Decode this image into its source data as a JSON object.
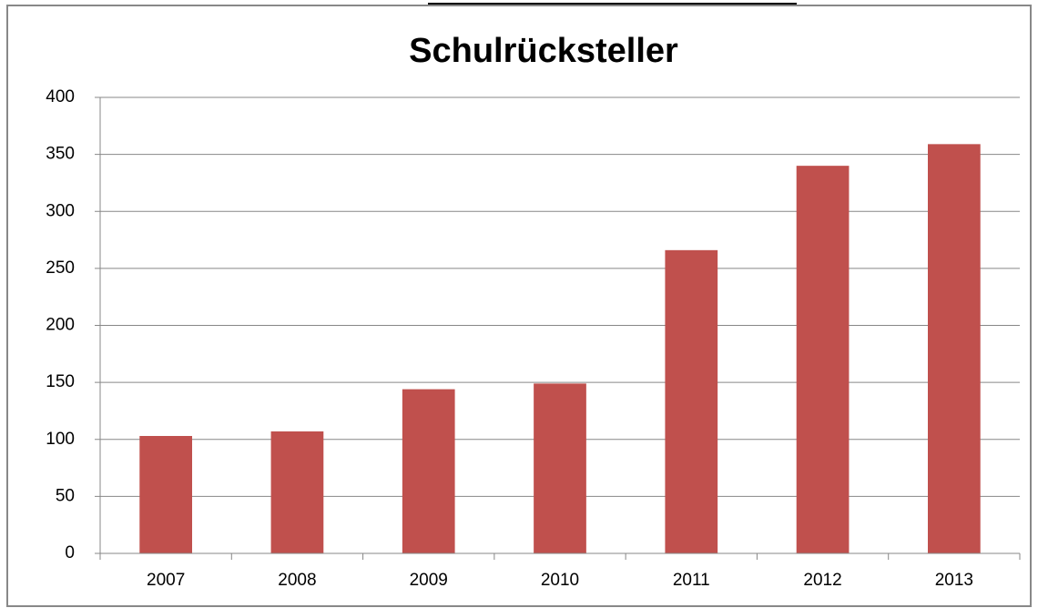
{
  "chart_data": {
    "type": "bar",
    "title": "Schulrücksteller",
    "categories": [
      "2007",
      "2008",
      "2009",
      "2010",
      "2011",
      "2012",
      "2013"
    ],
    "values": [
      103,
      107,
      144,
      149,
      266,
      340,
      359
    ],
    "color": "#c0504d",
    "ylim": [
      0,
      400
    ],
    "yticks": [
      0,
      50,
      100,
      150,
      200,
      250,
      300,
      350,
      400
    ],
    "grid": true
  }
}
